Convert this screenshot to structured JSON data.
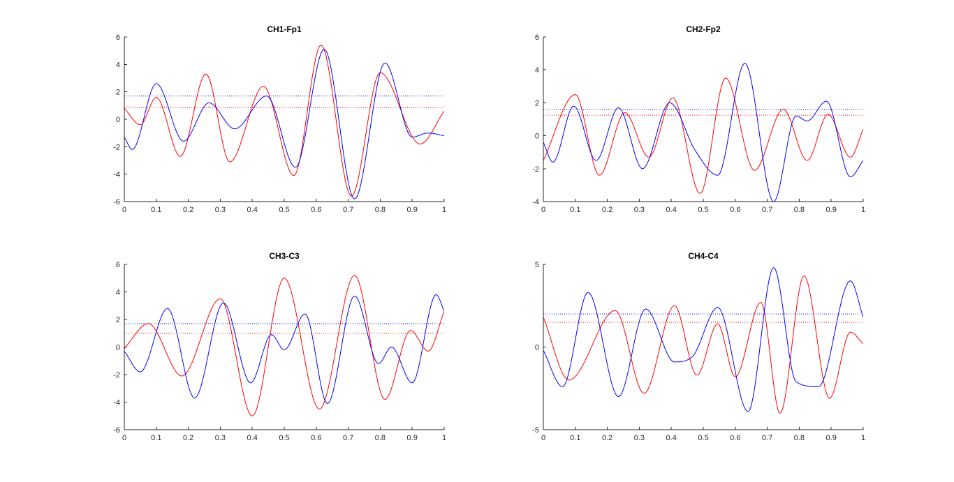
{
  "figure": {
    "background": "#ffffff"
  },
  "chart_data": [
    {
      "type": "line",
      "title": "CH1-Fp1",
      "xlabel": "",
      "ylabel": "",
      "xlim": [
        0,
        1
      ],
      "ylim": [
        -6,
        6
      ],
      "xticks": [
        0,
        0.1,
        0.2,
        0.3,
        0.4,
        0.5,
        0.6,
        0.7,
        0.8,
        0.9,
        1
      ],
      "xtick_labels": [
        "0",
        "0.1",
        "0.2",
        "0.3",
        "0.4",
        "0.5",
        "0.6",
        "0.7",
        "0.8",
        "0.9",
        "1"
      ],
      "yticks": [
        -6,
        -4,
        -2,
        0,
        2,
        4,
        6
      ],
      "ytick_labels": [
        "-6",
        "-4",
        "-2",
        "0",
        "2",
        "4",
        "6"
      ],
      "grid": false,
      "series": [
        {
          "color": "#ff0000",
          "x": [
            0,
            0.05,
            0.1,
            0.175,
            0.255,
            0.33,
            0.435,
            0.53,
            0.615,
            0.71,
            0.8,
            0.925,
            1
          ],
          "y": [
            0.8,
            -0.4,
            1.6,
            -2.7,
            3.3,
            -3.1,
            2.4,
            -4.1,
            5.4,
            -5.6,
            3.4,
            -1.8,
            0.6
          ]
        },
        {
          "color": "#0000ff",
          "x": [
            0,
            0.025,
            0.1,
            0.185,
            0.265,
            0.345,
            0.445,
            0.535,
            0.625,
            0.72,
            0.815,
            0.9,
            0.95,
            1
          ],
          "y": [
            -1.3,
            -2.2,
            2.6,
            -1.6,
            1.2,
            -0.7,
            1.7,
            -3.5,
            5.1,
            -5.8,
            4.1,
            -1.3,
            -1.0,
            -1.2
          ]
        }
      ],
      "reference_lines": [
        {
          "color": "#0000ff",
          "y": 1.7
        },
        {
          "color": "#ff0000",
          "y": 0.85
        }
      ]
    },
    {
      "type": "line",
      "title": "CH2-Fp2",
      "xlabel": "",
      "ylabel": "",
      "xlim": [
        0,
        1
      ],
      "ylim": [
        -4,
        6
      ],
      "xticks": [
        0,
        0.1,
        0.2,
        0.3,
        0.4,
        0.5,
        0.6,
        0.7,
        0.8,
        0.9,
        1
      ],
      "xtick_labels": [
        "0",
        "0.1",
        "0.2",
        "0.3",
        "0.4",
        "0.5",
        "0.6",
        "0.7",
        "0.8",
        "0.9",
        "1"
      ],
      "yticks": [
        -4,
        -2,
        0,
        2,
        4,
        6
      ],
      "ytick_labels": [
        "-4",
        "-2",
        "0",
        "2",
        "4",
        "6"
      ],
      "grid": false,
      "series": [
        {
          "color": "#ff0000",
          "x": [
            0,
            0.1,
            0.175,
            0.255,
            0.33,
            0.405,
            0.49,
            0.57,
            0.66,
            0.75,
            0.825,
            0.89,
            0.96,
            1
          ],
          "y": [
            -1.5,
            2.5,
            -2.4,
            1.4,
            -1.3,
            2.3,
            -3.5,
            3.5,
            -2.1,
            1.6,
            -1.5,
            1.3,
            -1.3,
            0.4
          ]
        },
        {
          "color": "#0000ff",
          "x": [
            0,
            0.03,
            0.095,
            0.165,
            0.235,
            0.31,
            0.395,
            0.475,
            0.545,
            0.63,
            0.72,
            0.79,
            0.825,
            0.885,
            0.96,
            1
          ],
          "y": [
            -0.4,
            -1.6,
            1.8,
            -1.5,
            1.7,
            -2.0,
            2.0,
            -0.9,
            -2.4,
            4.4,
            -4.0,
            1.2,
            0.9,
            2.1,
            -2.5,
            -1.5
          ]
        }
      ],
      "reference_lines": [
        {
          "color": "#0000ff",
          "y": 1.6
        },
        {
          "color": "#ff0000",
          "y": 1.25
        }
      ]
    },
    {
      "type": "line",
      "title": "CH3-C3",
      "xlabel": "",
      "ylabel": "",
      "xlim": [
        0,
        1
      ],
      "ylim": [
        -6,
        6
      ],
      "xticks": [
        0,
        0.1,
        0.2,
        0.3,
        0.4,
        0.5,
        0.6,
        0.7,
        0.8,
        0.9,
        1
      ],
      "xtick_labels": [
        "0",
        "0.1",
        "0.2",
        "0.3",
        "0.4",
        "0.5",
        "0.6",
        "0.7",
        "0.8",
        "0.9",
        "1"
      ],
      "yticks": [
        -6,
        -4,
        -2,
        0,
        2,
        4,
        6
      ],
      "ytick_labels": [
        "-6",
        "-4",
        "-2",
        "0",
        "2",
        "4",
        "6"
      ],
      "grid": false,
      "series": [
        {
          "color": "#ff0000",
          "x": [
            0,
            0.075,
            0.18,
            0.3,
            0.4,
            0.5,
            0.61,
            0.72,
            0.815,
            0.895,
            0.95,
            1
          ],
          "y": [
            -0.1,
            1.7,
            -2.1,
            3.5,
            -5.0,
            5.0,
            -4.5,
            5.2,
            -3.8,
            1.2,
            -0.3,
            2.6
          ]
        },
        {
          "color": "#0000ff",
          "x": [
            0,
            0.05,
            0.135,
            0.22,
            0.31,
            0.395,
            0.46,
            0.5,
            0.565,
            0.635,
            0.72,
            0.795,
            0.835,
            0.9,
            0.975,
            1
          ],
          "y": [
            -0.3,
            -1.8,
            2.8,
            -3.7,
            3.2,
            -2.6,
            0.9,
            -0.2,
            2.4,
            -4.1,
            3.7,
            -1.2,
            0.0,
            -2.6,
            3.8,
            2.6
          ]
        }
      ],
      "reference_lines": [
        {
          "color": "#0000ff",
          "y": 1.7
        },
        {
          "color": "#ff0000",
          "y": 1.0
        }
      ]
    },
    {
      "type": "line",
      "title": "CH4-C4",
      "xlabel": "",
      "ylabel": "",
      "xlim": [
        0,
        1
      ],
      "ylim": [
        -5,
        5
      ],
      "xticks": [
        0,
        0.1,
        0.2,
        0.3,
        0.4,
        0.5,
        0.6,
        0.7,
        0.8,
        0.9,
        1
      ],
      "xtick_labels": [
        "0",
        "0.1",
        "0.2",
        "0.3",
        "0.4",
        "0.5",
        "0.6",
        "0.7",
        "0.8",
        "0.9",
        "1"
      ],
      "yticks": [
        -5,
        0,
        5
      ],
      "ytick_labels": [
        "-5",
        "0",
        "5"
      ],
      "grid": false,
      "series": [
        {
          "color": "#ff0000",
          "x": [
            0,
            0.08,
            0.225,
            0.315,
            0.41,
            0.48,
            0.545,
            0.6,
            0.68,
            0.74,
            0.815,
            0.895,
            0.96,
            1
          ],
          "y": [
            1.8,
            -2.0,
            2.2,
            -2.8,
            2.5,
            -1.7,
            1.4,
            -1.8,
            2.7,
            -4.0,
            4.3,
            -3.1,
            0.9,
            0.2
          ]
        },
        {
          "color": "#0000ff",
          "x": [
            0,
            0.06,
            0.14,
            0.235,
            0.32,
            0.41,
            0.465,
            0.545,
            0.64,
            0.72,
            0.79,
            0.86,
            0.96,
            1
          ],
          "y": [
            -0.2,
            -2.4,
            3.3,
            -3.0,
            2.3,
            -0.9,
            -0.6,
            2.4,
            -3.9,
            4.8,
            -2.1,
            -2.4,
            4.0,
            1.8
          ]
        }
      ],
      "reference_lines": [
        {
          "color": "#0000ff",
          "y": 2.0
        },
        {
          "color": "#ff0000",
          "y": 1.5
        }
      ]
    }
  ]
}
